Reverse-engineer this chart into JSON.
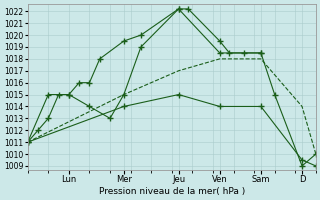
{
  "bg_color": "#cce8e8",
  "grid_color": "#aacccc",
  "line_color": "#1a5e1a",
  "xlabel": "Pression niveau de la mer( hPa )",
  "ylim": [
    1008.7,
    1022.6
  ],
  "yticks": [
    1009,
    1010,
    1011,
    1012,
    1013,
    1014,
    1015,
    1016,
    1017,
    1018,
    1019,
    1020,
    1021,
    1022
  ],
  "xlim": [
    0,
    14
  ],
  "xtick_pos": [
    2,
    4.67,
    7.33,
    9.33,
    11.33,
    13.33
  ],
  "xtick_labels": [
    "Lun",
    "Mer",
    "Jeu",
    "Ven",
    "Sam",
    "D"
  ],
  "series": [
    {
      "x": [
        0,
        0.5,
        1,
        1.5,
        2,
        2.5,
        3,
        3.5,
        4.67,
        5.5,
        7.33,
        7.8,
        9.33,
        9.8,
        11.33
      ],
      "y": [
        1011,
        1012,
        1013,
        1015,
        1015,
        1016,
        1016,
        1018,
        1019.5,
        1020,
        1022.2,
        1022.2,
        1019.5,
        1018.5,
        1018.5
      ],
      "marker": "+",
      "ms": 5,
      "ls": "-"
    },
    {
      "x": [
        0,
        1,
        2,
        3,
        4,
        4.67,
        5.5,
        7.33,
        9.33,
        10.5,
        11.33,
        12,
        13.33,
        14
      ],
      "y": [
        1011,
        1015,
        1015,
        1014,
        1013,
        1015,
        1019,
        1022.2,
        1018.5,
        1018.5,
        1018.5,
        1015,
        1009,
        1010
      ],
      "marker": "+",
      "ms": 5,
      "ls": "-"
    },
    {
      "x": [
        0,
        4.67,
        7.33,
        9.33,
        11.33,
        13.33,
        14
      ],
      "y": [
        1011,
        1015,
        1017,
        1018,
        1018,
        1014,
        1010
      ],
      "marker": null,
      "ms": 0,
      "ls": "--"
    },
    {
      "x": [
        0,
        4.67,
        7.33,
        9.33,
        11.33,
        13.33,
        14
      ],
      "y": [
        1011,
        1014,
        1015,
        1014,
        1014,
        1009.5,
        1009
      ],
      "marker": "+",
      "ms": 5,
      "ls": "-"
    }
  ]
}
